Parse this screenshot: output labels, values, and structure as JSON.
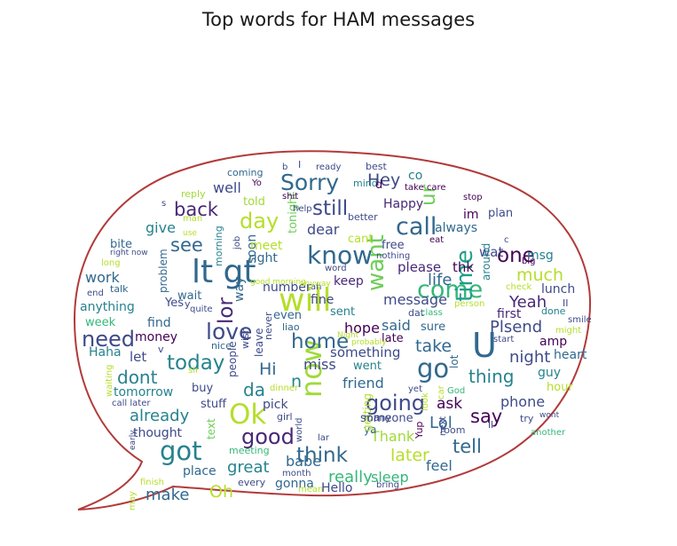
{
  "chart_data": {
    "type": "wordcloud",
    "title": "Top words for HAM messages",
    "outline_color": "#b23a3a",
    "palette": [
      "#440154",
      "#482878",
      "#3e4a89",
      "#31688e",
      "#26828e",
      "#1f9e89",
      "#35b779",
      "#6ece58",
      "#b5de2b",
      "#a0da39"
    ],
    "words": [
      {
        "text": "U",
        "weight": 1.0,
        "color": "#31688e"
      },
      {
        "text": "will",
        "weight": 0.95,
        "color": "#b5de2b"
      },
      {
        "text": "lt gt",
        "weight": 0.92,
        "color": "#31688e"
      },
      {
        "text": "Ok",
        "weight": 0.78,
        "color": "#b5de2b"
      },
      {
        "text": "now",
        "weight": 0.8,
        "color": "#a0da39"
      },
      {
        "text": "go",
        "weight": 0.72,
        "color": "#31688e"
      },
      {
        "text": "got",
        "weight": 0.7,
        "color": "#26828e"
      },
      {
        "text": "know",
        "weight": 0.68,
        "color": "#31688e"
      },
      {
        "text": "come",
        "weight": 0.66,
        "color": "#35b779"
      },
      {
        "text": "call",
        "weight": 0.64,
        "color": "#31688e"
      },
      {
        "text": "time",
        "weight": 0.62,
        "color": "#1f9e89"
      },
      {
        "text": "want",
        "weight": 0.6,
        "color": "#6ece58"
      },
      {
        "text": "Sorry",
        "weight": 0.58,
        "color": "#31688e"
      },
      {
        "text": "love",
        "weight": 0.58,
        "color": "#3e4a89"
      },
      {
        "text": "need",
        "weight": 0.56,
        "color": "#3e4a89"
      },
      {
        "text": "going",
        "weight": 0.56,
        "color": "#3e4a89"
      },
      {
        "text": "good",
        "weight": 0.55,
        "color": "#482878"
      },
      {
        "text": "day",
        "weight": 0.54,
        "color": "#b5de2b"
      },
      {
        "text": "still",
        "weight": 0.53,
        "color": "#3e4a89"
      },
      {
        "text": "home",
        "weight": 0.52,
        "color": "#31688e"
      },
      {
        "text": "today",
        "weight": 0.5,
        "color": "#26828e"
      },
      {
        "text": "one",
        "weight": 0.5,
        "color": "#440154"
      },
      {
        "text": "think",
        "weight": 0.5,
        "color": "#31688e"
      },
      {
        "text": "ur",
        "weight": 0.5,
        "color": "#6ece58"
      },
      {
        "text": "lor",
        "weight": 0.5,
        "color": "#482878"
      },
      {
        "text": "say",
        "weight": 0.46,
        "color": "#440154"
      },
      {
        "text": "tell",
        "weight": 0.46,
        "color": "#31688e"
      },
      {
        "text": "back",
        "weight": 0.44,
        "color": "#482878"
      },
      {
        "text": "see",
        "weight": 0.44,
        "color": "#31688e"
      },
      {
        "text": "dont",
        "weight": 0.42,
        "color": "#26828e"
      },
      {
        "text": "thing",
        "weight": 0.42,
        "color": "#26828e"
      },
      {
        "text": "da",
        "weight": 0.42,
        "color": "#26828e"
      },
      {
        "text": "much",
        "weight": 0.4,
        "color": "#b5de2b"
      },
      {
        "text": "Hi",
        "weight": 0.4,
        "color": "#31688e"
      },
      {
        "text": "later",
        "weight": 0.4,
        "color": "#b5de2b"
      },
      {
        "text": "Oh",
        "weight": 0.4,
        "color": "#b5de2b"
      },
      {
        "text": "Hey",
        "weight": 0.38,
        "color": "#3e4a89"
      },
      {
        "text": "n",
        "weight": 0.38,
        "color": "#26828e"
      },
      {
        "text": "take",
        "weight": 0.38,
        "color": "#31688e"
      },
      {
        "text": "Yeah",
        "weight": 0.36,
        "color": "#482878"
      },
      {
        "text": "night",
        "weight": 0.36,
        "color": "#3e4a89"
      },
      {
        "text": "Plsend",
        "weight": 0.36,
        "color": "#3e4a89"
      },
      {
        "text": "life",
        "weight": 0.36,
        "color": "#31688e"
      },
      {
        "text": "make",
        "weight": 0.34,
        "color": "#31688e"
      },
      {
        "text": "great",
        "weight": 0.34,
        "color": "#26828e"
      },
      {
        "text": "really",
        "weight": 0.34,
        "color": "#35b779"
      },
      {
        "text": "already",
        "weight": 0.34,
        "color": "#26828e"
      },
      {
        "text": "Lol",
        "weight": 0.34,
        "color": "#31688e"
      },
      {
        "text": "ask",
        "weight": 0.32,
        "color": "#440154"
      },
      {
        "text": "phone",
        "weight": 0.3,
        "color": "#3e4a89"
      },
      {
        "text": "Thank",
        "weight": 0.3,
        "color": "#a0da39"
      },
      {
        "text": "friend",
        "weight": 0.3,
        "color": "#31688e"
      },
      {
        "text": "miss",
        "weight": 0.3,
        "color": "#3e4a89"
      },
      {
        "text": "hope",
        "weight": 0.3,
        "color": "#440154"
      },
      {
        "text": "said",
        "weight": 0.3,
        "color": "#31688e"
      },
      {
        "text": "well",
        "weight": 0.3,
        "color": "#3e4a89"
      },
      {
        "text": "dear",
        "weight": 0.3,
        "color": "#3e4a89"
      },
      {
        "text": "message",
        "weight": 0.28,
        "color": "#3e4a89"
      },
      {
        "text": "give",
        "weight": 0.28,
        "color": "#26828e"
      },
      {
        "text": "work",
        "weight": 0.28,
        "color": "#31688e"
      },
      {
        "text": "feel",
        "weight": 0.28,
        "color": "#31688e"
      },
      {
        "text": "babe",
        "weight": 0.28,
        "color": "#31688e"
      },
      {
        "text": "sleep",
        "weight": 0.28,
        "color": "#35b779"
      },
      {
        "text": "something",
        "weight": 0.26,
        "color": "#3e4a89"
      },
      {
        "text": "wat",
        "weight": 0.26,
        "color": "#3e4a89"
      },
      {
        "text": "please",
        "weight": 0.26,
        "color": "#482878"
      },
      {
        "text": "thk",
        "weight": 0.26,
        "color": "#440154"
      },
      {
        "text": "let",
        "weight": 0.26,
        "color": "#3e4a89"
      },
      {
        "text": "keep",
        "weight": 0.24,
        "color": "#482878"
      },
      {
        "text": "way",
        "weight": 0.24,
        "color": "#31688e"
      },
      {
        "text": "soon",
        "weight": 0.24,
        "color": "#31688e"
      },
      {
        "text": "pick",
        "weight": 0.24,
        "color": "#3e4a89"
      },
      {
        "text": "tomorrow",
        "weight": 0.24,
        "color": "#26828e"
      },
      {
        "text": "anything",
        "weight": 0.24,
        "color": "#26828e"
      },
      {
        "text": "Happy",
        "weight": 0.24,
        "color": "#482878"
      },
      {
        "text": "co",
        "weight": 0.24,
        "color": "#26828e"
      },
      {
        "text": "guy",
        "weight": 0.24,
        "color": "#26828e"
      },
      {
        "text": "amp",
        "weight": 0.24,
        "color": "#440154"
      },
      {
        "text": "heart",
        "weight": 0.24,
        "color": "#31688e"
      },
      {
        "text": "first",
        "weight": 0.22,
        "color": "#482878"
      },
      {
        "text": "lunch",
        "weight": 0.22,
        "color": "#3e4a89"
      },
      {
        "text": "msg",
        "weight": 0.22,
        "color": "#26828e"
      },
      {
        "text": "plan",
        "weight": 0.2,
        "color": "#3e4a89"
      },
      {
        "text": "im",
        "weight": 0.22,
        "color": "#440154"
      },
      {
        "text": "always",
        "weight": 0.22,
        "color": "#31688e"
      },
      {
        "text": "thought",
        "weight": 0.22,
        "color": "#3e4a89"
      },
      {
        "text": "place",
        "weight": 0.22,
        "color": "#31688e"
      },
      {
        "text": "gonna",
        "weight": 0.22,
        "color": "#31688e"
      },
      {
        "text": "Hello",
        "weight": 0.22,
        "color": "#3e4a89"
      },
      {
        "text": "Haha",
        "weight": 0.22,
        "color": "#26828e"
      },
      {
        "text": "money",
        "weight": 0.22,
        "color": "#440154"
      },
      {
        "text": "find",
        "weight": 0.22,
        "color": "#31688e"
      },
      {
        "text": "fine",
        "weight": 0.22,
        "color": "#3e4a89"
      },
      {
        "text": "number",
        "weight": 0.22,
        "color": "#3e4a89"
      },
      {
        "text": "meet",
        "weight": 0.22,
        "color": "#b5de2b"
      },
      {
        "text": "right",
        "weight": 0.22,
        "color": "#31688e"
      },
      {
        "text": "week",
        "weight": 0.2,
        "color": "#35b779"
      },
      {
        "text": "Yes",
        "weight": 0.2,
        "color": "#3e4a89"
      },
      {
        "text": "even",
        "weight": 0.2,
        "color": "#31688e"
      },
      {
        "text": "sent",
        "weight": 0.2,
        "color": "#26828e"
      },
      {
        "text": "late",
        "weight": 0.2,
        "color": "#440154"
      },
      {
        "text": "sure",
        "weight": 0.2,
        "color": "#31688e"
      },
      {
        "text": "went",
        "weight": 0.2,
        "color": "#26828e"
      },
      {
        "text": "buy",
        "weight": 0.2,
        "color": "#3e4a89"
      },
      {
        "text": "wait",
        "weight": 0.2,
        "color": "#31688e"
      },
      {
        "text": "stuff",
        "weight": 0.2,
        "color": "#3e4a89"
      },
      {
        "text": "free",
        "weight": 0.2,
        "color": "#3e4a89"
      },
      {
        "text": "cant",
        "weight": 0.18,
        "color": "#b5de2b"
      },
      {
        "text": "told",
        "weight": 0.18,
        "color": "#a0da39"
      },
      {
        "text": "tonight",
        "weight": 0.18,
        "color": "#6ece58"
      },
      {
        "text": "bite",
        "weight": 0.18,
        "color": "#31688e"
      },
      {
        "text": "someone",
        "weight": 0.18,
        "color": "#3e4a89"
      },
      {
        "text": "room",
        "weight": 0.14,
        "color": "#3e4a89"
      },
      {
        "text": "hour",
        "weight": 0.18,
        "color": "#b5de2b"
      },
      {
        "text": "problem",
        "weight": 0.16,
        "color": "#31688e"
      },
      {
        "text": "text",
        "weight": 0.16,
        "color": "#6ece58"
      },
      {
        "text": "ya",
        "weight": 0.16,
        "color": "#31688e"
      },
      {
        "text": "around",
        "weight": 0.16,
        "color": "#26828e"
      },
      {
        "text": "people",
        "weight": 0.16,
        "color": "#3e4a89"
      },
      {
        "text": "leave",
        "weight": 0.16,
        "color": "#3e4a89"
      },
      {
        "text": "getting",
        "weight": 0.16,
        "color": "#b5de2b"
      },
      {
        "text": "lot",
        "weight": 0.16,
        "color": "#31688e"
      },
      {
        "text": "morning",
        "weight": 0.14,
        "color": "#26828e"
      },
      {
        "text": "nice",
        "weight": 0.14,
        "color": "#31688e"
      },
      {
        "text": "wish",
        "weight": 0.14,
        "color": "#3e4a89"
      },
      {
        "text": "liao",
        "weight": 0.14,
        "color": "#31688e"
      },
      {
        "text": "dat",
        "weight": 0.14,
        "color": "#3e4a89"
      },
      {
        "text": "meeting",
        "weight": 0.14,
        "color": "#35b779"
      },
      {
        "text": "girl",
        "weight": 0.12,
        "color": "#3e4a89"
      },
      {
        "text": "every",
        "weight": 0.12,
        "color": "#3e4a89"
      },
      {
        "text": "Yup",
        "weight": 0.12,
        "color": "#440154"
      },
      {
        "text": "ll",
        "weight": 0.12,
        "color": "#3e4a89"
      },
      {
        "text": "many",
        "weight": 0.12,
        "color": "#3e4a89"
      },
      {
        "text": "mind",
        "weight": 0.12,
        "color": "#26828e"
      },
      {
        "text": "coming",
        "weight": 0.12,
        "color": "#31688e"
      },
      {
        "text": "ready",
        "weight": 0.1,
        "color": "#3e4a89"
      },
      {
        "text": "best",
        "weight": 0.12,
        "color": "#3e4a89"
      },
      {
        "text": "reply",
        "weight": 0.12,
        "color": "#a0da39"
      },
      {
        "text": "shit",
        "weight": 0.1,
        "color": "#440154"
      },
      {
        "text": "help",
        "weight": 0.1,
        "color": "#3e4a89"
      },
      {
        "text": "better",
        "weight": 0.12,
        "color": "#3e4a89"
      },
      {
        "text": "stop",
        "weight": 0.1,
        "color": "#440154"
      },
      {
        "text": "take care",
        "weight": 0.1,
        "color": "#440154"
      },
      {
        "text": "eat",
        "weight": 0.1,
        "color": "#440154"
      },
      {
        "text": "big",
        "weight": 0.1,
        "color": "#440154"
      },
      {
        "text": "check",
        "weight": 0.1,
        "color": "#b5de2b"
      },
      {
        "text": "nothing",
        "weight": 0.1,
        "color": "#3e4a89"
      },
      {
        "text": "word",
        "weight": 0.1,
        "color": "#3e4a89"
      },
      {
        "text": "ah",
        "weight": 0.1,
        "color": "#3e4a89"
      },
      {
        "text": "person",
        "weight": 0.1,
        "color": "#b5de2b"
      },
      {
        "text": "class",
        "weight": 0.1,
        "color": "#35b779"
      },
      {
        "text": "start",
        "weight": 0.1,
        "color": "#3e4a89"
      },
      {
        "text": "might",
        "weight": 0.1,
        "color": "#b5de2b"
      },
      {
        "text": "done",
        "weight": 0.12,
        "color": "#26828e"
      },
      {
        "text": "II",
        "weight": 0.14,
        "color": "#3e4a89"
      },
      {
        "text": "smile",
        "weight": 0.1,
        "color": "#3e4a89"
      },
      {
        "text": "wont",
        "weight": 0.08,
        "color": "#3e4a89"
      },
      {
        "text": "try",
        "weight": 0.12,
        "color": "#3e4a89"
      },
      {
        "text": "another",
        "weight": 0.1,
        "color": "#35b779"
      },
      {
        "text": "God",
        "weight": 0.1,
        "color": "#35b779"
      },
      {
        "text": "yet",
        "weight": 0.1,
        "color": "#3e4a89"
      },
      {
        "text": "car",
        "weight": 0.1,
        "color": "#b5de2b"
      },
      {
        "text": "look",
        "weight": 0.1,
        "color": "#b5de2b"
      },
      {
        "text": "next",
        "weight": 0.1,
        "color": "#3e4a89"
      },
      {
        "text": "lar",
        "weight": 0.1,
        "color": "#3e4a89"
      },
      {
        "text": "world",
        "weight": 0.1,
        "color": "#3e4a89"
      },
      {
        "text": "month",
        "weight": 0.1,
        "color": "#3e4a89"
      },
      {
        "text": "anyway",
        "weight": 0.08,
        "color": "#b5de2b"
      },
      {
        "text": "probably",
        "weight": 0.08,
        "color": "#b5de2b"
      },
      {
        "text": "never",
        "weight": 0.12,
        "color": "#3e4a89"
      },
      {
        "text": "dinner",
        "weight": 0.1,
        "color": "#b5de2b"
      },
      {
        "text": "sir",
        "weight": 0.1,
        "color": "#b5de2b"
      },
      {
        "text": "waiting",
        "weight": 0.1,
        "color": "#b5de2b"
      },
      {
        "text": "call later",
        "weight": 0.1,
        "color": "#3e4a89"
      },
      {
        "text": "early",
        "weight": 0.08,
        "color": "#3e4a89"
      },
      {
        "text": "finish",
        "weight": 0.1,
        "color": "#b5de2b"
      },
      {
        "text": "may",
        "weight": 0.1,
        "color": "#b5de2b"
      },
      {
        "text": "mean",
        "weight": 0.1,
        "color": "#b5de2b"
      },
      {
        "text": "bring",
        "weight": 0.1,
        "color": "#3e4a89"
      },
      {
        "text": "end",
        "weight": 0.1,
        "color": "#3e4a89"
      },
      {
        "text": "talk",
        "weight": 0.12,
        "color": "#31688e"
      },
      {
        "text": "quite",
        "weight": 0.1,
        "color": "#3e4a89"
      },
      {
        "text": "y",
        "weight": 0.12,
        "color": "#3e4a89"
      },
      {
        "text": "v",
        "weight": 0.12,
        "color": "#3e4a89"
      },
      {
        "text": "long",
        "weight": 0.1,
        "color": "#b5de2b"
      },
      {
        "text": "right now",
        "weight": 0.08,
        "color": "#3e4a89"
      },
      {
        "text": "use",
        "weight": 0.08,
        "color": "#b5de2b"
      },
      {
        "text": "man",
        "weight": 0.1,
        "color": "#b5de2b"
      },
      {
        "text": "s",
        "weight": 0.1,
        "color": "#3e4a89"
      },
      {
        "text": "Yo",
        "weight": 0.1,
        "color": "#440154"
      },
      {
        "text": "job",
        "weight": 0.1,
        "color": "#3e4a89"
      },
      {
        "text": "b",
        "weight": 0.1,
        "color": "#3e4a89"
      },
      {
        "text": "I",
        "weight": 0.14,
        "color": "#3e4a89"
      },
      {
        "text": "d",
        "weight": 0.18,
        "color": "#440154"
      },
      {
        "text": "c",
        "weight": 0.1,
        "color": "#3e4a89"
      },
      {
        "text": "good morning",
        "weight": 0.06,
        "color": "#b5de2b"
      },
      {
        "text": "Night",
        "weight": 0.08,
        "color": "#b5de2b"
      }
    ]
  }
}
